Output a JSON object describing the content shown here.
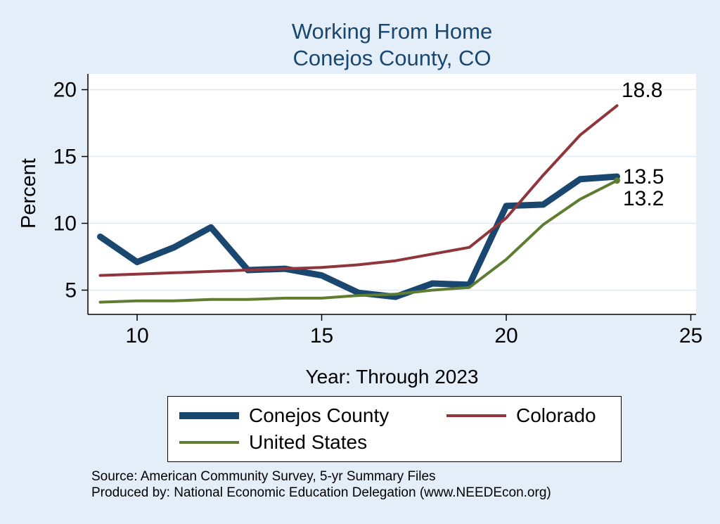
{
  "title": {
    "line1": "Working From Home",
    "line2": "Conejos County, CO"
  },
  "colors": {
    "background": "#e4eef8",
    "plot_background": "#ffffff",
    "gridline": "#dfe9f2",
    "axis": "#000000",
    "title_text": "#1a476f",
    "navy": "#1a476f",
    "maroon": "#90353b",
    "olive": "#5e7d33"
  },
  "axes": {
    "y_label": "Percent",
    "x_label": "Year: Through 2023",
    "y_ticks": [
      5,
      10,
      15,
      20
    ],
    "x_ticks": [
      10,
      15,
      20,
      25
    ]
  },
  "legend": {
    "items": [
      {
        "label": "Conejos County",
        "color": "#1a476f",
        "thickness": 10
      },
      {
        "label": "Colorado",
        "color": "#90353b",
        "thickness": 4
      },
      {
        "label": "United States",
        "color": "#5e7d33",
        "thickness": 4
      }
    ]
  },
  "source": {
    "line1": "Source: American Community Survey, 5-yr Summary Files",
    "line2": "Produced by: National Economic Education Delegation (www.NEEDEcon.org)"
  },
  "chart_data": {
    "type": "line",
    "title": "Working From Home — Conejos County, CO",
    "xlabel": "Year: Through 2023",
    "ylabel": "Percent",
    "x": [
      9,
      10,
      11,
      12,
      13,
      14,
      15,
      16,
      17,
      18,
      19,
      20,
      21,
      22,
      23
    ],
    "xlim": [
      8.7,
      25.2
    ],
    "ylim": [
      3.2,
      21.3
    ],
    "x_ticks": [
      10,
      15,
      20,
      25
    ],
    "y_ticks": [
      5,
      10,
      15,
      20
    ],
    "grid": "horizontal",
    "legend_position": "bottom",
    "series": [
      {
        "name": "Conejos County",
        "color": "#1a476f",
        "stroke_width": 9,
        "values": [
          9.0,
          7.1,
          8.2,
          9.7,
          6.5,
          6.6,
          6.1,
          4.8,
          4.5,
          5.5,
          5.4,
          11.3,
          11.4,
          13.3,
          13.5
        ],
        "end_label": "13.5"
      },
      {
        "name": "Colorado",
        "color": "#90353b",
        "stroke_width": 4,
        "values": [
          6.1,
          6.2,
          6.3,
          6.4,
          6.5,
          6.6,
          6.7,
          6.9,
          7.2,
          7.7,
          8.2,
          10.4,
          13.6,
          16.6,
          18.8
        ],
        "end_label": "18.8"
      },
      {
        "name": "United States",
        "color": "#5e7d33",
        "stroke_width": 4,
        "values": [
          4.1,
          4.2,
          4.2,
          4.3,
          4.3,
          4.4,
          4.4,
          4.6,
          4.7,
          5.0,
          5.2,
          7.3,
          9.9,
          11.8,
          13.2
        ],
        "end_label": "13.2"
      }
    ]
  }
}
